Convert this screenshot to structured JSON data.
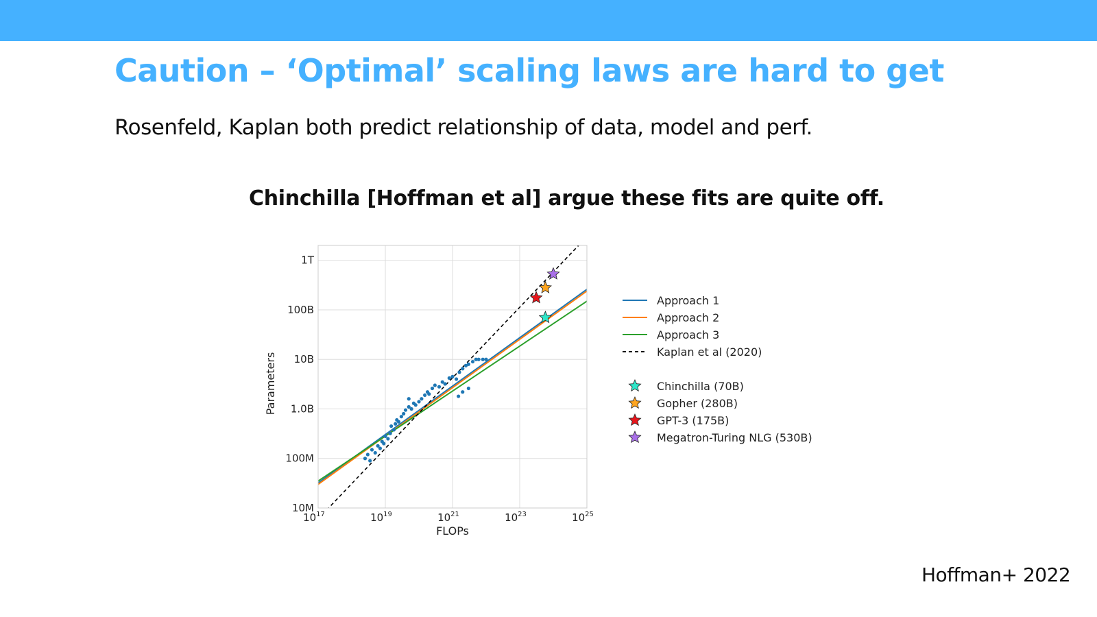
{
  "slide": {
    "title": "Caution – ‘Optimal’ scaling laws are hard to get",
    "subtitle": "Rosenfeld, Kaplan both predict relationship of data, model and perf.",
    "claim": "Chinchilla [Hoffman et al] argue these fits are quite off.",
    "citation": "Hoffman+ 2022",
    "accent_color": "#45b1ff"
  },
  "chart_data": {
    "type": "line",
    "title": "",
    "xlabel": "FLOPs",
    "ylabel": "Parameters",
    "x_scale": "log",
    "y_scale": "log",
    "xlim": [
      1e+17,
      1e+25
    ],
    "ylim": [
      10000000.0,
      2000000000000.0
    ],
    "grid": true,
    "legend_position": "right",
    "x_ticks": [
      {
        "value": 1e+17,
        "base": "10",
        "exp": "17"
      },
      {
        "value": 1e+19,
        "base": "10",
        "exp": "19"
      },
      {
        "value": 1e+21,
        "base": "10",
        "exp": "21"
      },
      {
        "value": 1e+23,
        "base": "10",
        "exp": "23"
      },
      {
        "value": 1e+25,
        "base": "10",
        "exp": "25"
      }
    ],
    "y_ticks": [
      {
        "value": 10000000.0,
        "label": "10M"
      },
      {
        "value": 100000000.0,
        "label": "100M"
      },
      {
        "value": 1000000000.0,
        "label": "1.0B"
      },
      {
        "value": 10000000000.0,
        "label": "10B"
      },
      {
        "value": 100000000000.0,
        "label": "100B"
      },
      {
        "value": 1000000000000.0,
        "label": "1T"
      }
    ],
    "series": [
      {
        "name": "Approach 1",
        "color": "#1f77b4",
        "style": "solid",
        "x": [
          1e+17,
          1e+25
        ],
        "y": [
          32000000.0,
          260000000000.0
        ]
      },
      {
        "name": "Approach 2",
        "color": "#ff7f0e",
        "style": "solid",
        "x": [
          1e+17,
          1e+25
        ],
        "y": [
          30000000.0,
          240000000000.0
        ]
      },
      {
        "name": "Approach 3",
        "color": "#2ca02c",
        "style": "solid",
        "x": [
          1e+17,
          1e+25
        ],
        "y": [
          35000000.0,
          150000000000.0
        ]
      },
      {
        "name": "Kaplan et al (2020)",
        "color": "#000000",
        "style": "dashed",
        "x": [
          1e+17,
          1e+25
        ],
        "y": [
          6000000.0,
          3000000000000.0
        ]
      }
    ],
    "scatter": {
      "color": "#1f77b4",
      "points": [
        [
          2.5e+18,
          100000000.0
        ],
        [
          3e+18,
          120000000.0
        ],
        [
          3.5e+18,
          90000000.0
        ],
        [
          4e+18,
          150000000.0
        ],
        [
          5e+18,
          130000000.0
        ],
        [
          6e+18,
          180000000.0
        ],
        [
          7e+18,
          160000000.0
        ],
        [
          8e+18,
          220000000.0
        ],
        [
          9e+18,
          200000000.0
        ],
        [
          1e+19,
          280000000.0
        ],
        [
          1.2e+19,
          250000000.0
        ],
        [
          1.4e+19,
          320000000.0
        ],
        [
          1.5e+19,
          450000000.0
        ],
        [
          1.8e+19,
          380000000.0
        ],
        [
          2e+19,
          500000000.0
        ],
        [
          2.2e+19,
          600000000.0
        ],
        [
          2.5e+19,
          550000000.0
        ],
        [
          3e+19,
          700000000.0
        ],
        [
          3.5e+19,
          800000000.0
        ],
        [
          4e+19,
          950000000.0
        ],
        [
          5e+19,
          1100000000.0
        ],
        [
          6e+19,
          1000000000.0
        ],
        [
          7e+19,
          1300000000.0
        ],
        [
          8e+19,
          1200000000.0
        ],
        [
          1e+20,
          1400000000.0
        ],
        [
          1.2e+20,
          1600000000.0
        ],
        [
          1.5e+20,
          1900000000.0
        ],
        [
          1.8e+20,
          2200000000.0
        ],
        [
          2e+20,
          2000000000.0
        ],
        [
          2.5e+20,
          2600000000.0
        ],
        [
          3e+20,
          3000000000.0
        ],
        [
          4e+20,
          2800000000.0
        ],
        [
          5e+20,
          3500000000.0
        ],
        [
          6e+20,
          3200000000.0
        ],
        [
          8e+20,
          4200000000.0
        ],
        [
          1e+21,
          4500000000.0
        ],
        [
          1.3e+21,
          4000000000.0
        ],
        [
          1.6e+21,
          5500000000.0
        ],
        [
          2e+21,
          6500000000.0
        ],
        [
          2.5e+21,
          7500000000.0
        ],
        [
          3e+21,
          8000000000.0
        ],
        [
          4e+21,
          9000000000.0
        ],
        [
          5e+21,
          10000000000.0
        ],
        [
          6e+21,
          10000000000.0
        ],
        [
          8e+21,
          10000000000.0
        ],
        [
          1e+22,
          10000000000.0
        ],
        [
          2e+21,
          2200000000.0
        ],
        [
          3e+21,
          2600000000.0
        ],
        [
          1.5e+21,
          1800000000.0
        ],
        [
          5e+19,
          1600000000.0
        ]
      ]
    },
    "models": [
      {
        "name": "Chinchilla (70B)",
        "color": "#2ee6c8",
        "x": 5.8e+23,
        "y": 70000000000.0
      },
      {
        "name": "Gopher (280B)",
        "color": "#ffa520",
        "x": 5.8e+23,
        "y": 280000000000.0
      },
      {
        "name": "GPT-3 (175B)",
        "color": "#e8151b",
        "x": 3.1e+23,
        "y": 175000000000.0
      },
      {
        "name": "Megatron-Turing NLG (530B)",
        "color": "#a970e8",
        "x": 1e+24,
        "y": 530000000000.0
      }
    ]
  }
}
